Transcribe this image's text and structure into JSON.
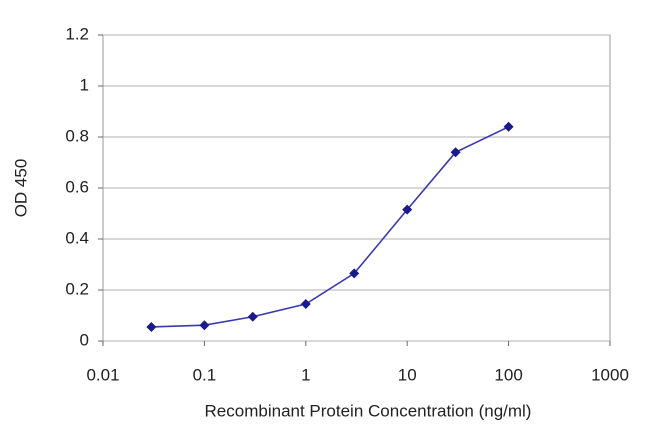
{
  "chart_data": {
    "type": "line",
    "x_label": "Recombinant Protein Concentration (ng/ml)",
    "y_label": "OD 450",
    "x": [
      0.03,
      0.1,
      0.3,
      1,
      3,
      10,
      30,
      100
    ],
    "values": [
      0.055,
      0.062,
      0.095,
      0.145,
      0.265,
      0.515,
      0.74,
      0.84
    ],
    "color": "#3a3ab0",
    "marker_color": "#1a1a8c",
    "xscale": "log",
    "xlim": [
      0.01,
      1000
    ],
    "xticks": [
      0.01,
      0.1,
      1,
      10,
      100,
      1000
    ],
    "ylim": [
      0,
      1.2
    ],
    "yticks": [
      0,
      0.2,
      0.4,
      0.6,
      0.8,
      1,
      1.2
    ],
    "grid": true
  }
}
